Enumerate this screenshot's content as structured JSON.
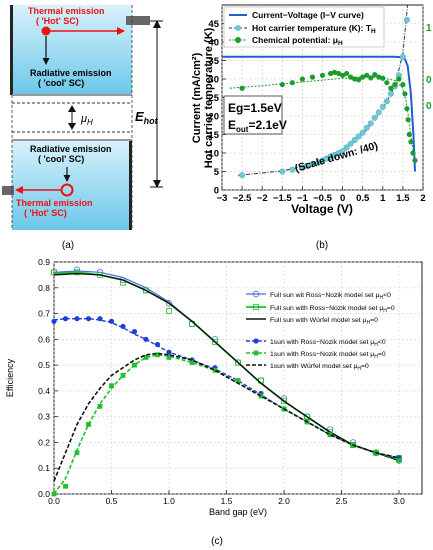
{
  "panel_labels": {
    "a": "(a)",
    "b": "(b)",
    "c": "(c)"
  },
  "diagram_a": {
    "top_thermal": "Thermal emission",
    "top_hot": "( 'Hot' SC)",
    "top_radiative": "Radiative emission",
    "top_cool": "( 'cool' SC)",
    "mu_label": "μ",
    "mu_sub": "H",
    "ehot_label": "E",
    "ehot_sub": "hot",
    "bottom_radiative": "Radiative emission",
    "bottom_cool": "( 'cool' SC)",
    "bottom_thermal": "Thermal emission",
    "bottom_hot": "( 'Hot' SC)"
  },
  "chart_data": [
    {
      "id": "b",
      "type": "line",
      "xlabel": "Voltage (V)",
      "ylabel_line1": "Current (mA/cm²)",
      "ylabel_line2": "Hot carrier temperature (K)",
      "xlim": [
        -3,
        2
      ],
      "ylim": [
        0,
        50
      ],
      "xticks": [
        "−3",
        "−2.5",
        "−2",
        "−1.5",
        "−1",
        "−0.5",
        "0",
        "0.5",
        "1",
        "1.5",
        "2"
      ],
      "yticks": [
        "0",
        "5",
        "10",
        "15",
        "20",
        "25",
        "30",
        "35",
        "40",
        "45"
      ],
      "right_ticks": [
        "1",
        "0",
        "0"
      ],
      "grid": true,
      "legend_position": "top-right",
      "legend": [
        "Current−Voltage (I−V curve)",
        "Hot carrier temperature (K): T",
        "Chemical potential: μ"
      ],
      "legend_subs": [
        "",
        "H",
        "H"
      ],
      "annotations": {
        "eg": "Eg=1.5eV",
        "eout": "E",
        "eout_sub": "out",
        "eout_val": "=2.1eV",
        "scale": "(Scale down: /40)"
      },
      "colors": {
        "iv": "#1f5fd6",
        "temp": "#6fc8d8",
        "mu": "#1a9c2a",
        "fit": "#333333"
      },
      "series": [
        {
          "name": "Current−Voltage (I−V curve)",
          "x": [
            -3,
            -2,
            -1,
            0,
            1,
            1.3,
            1.45,
            1.55,
            1.62,
            1.7,
            1.76,
            1.8
          ],
          "y": [
            36,
            36,
            36,
            36,
            36,
            36,
            35.9,
            35.4,
            33.5,
            26,
            15,
            5
          ]
        },
        {
          "name": "Hot carrier temperature (K): T",
          "x": [
            -2.5,
            -1.5,
            -1.25,
            -1.0,
            -0.9,
            -0.75,
            -0.6,
            -0.5,
            -0.4,
            -0.3,
            -0.2,
            -0.1,
            0.0,
            0.1,
            0.2,
            0.3,
            0.4,
            0.5,
            0.6,
            0.7,
            0.8,
            0.9,
            1.0,
            1.1,
            1.2,
            1.3,
            1.4,
            1.5,
            1.6
          ],
          "y": [
            4,
            5,
            5.5,
            6,
            6.5,
            7,
            7.5,
            8,
            8.5,
            9,
            9.5,
            10,
            10.5,
            11.5,
            12.5,
            13.5,
            14.5,
            15.5,
            16.8,
            18,
            19.5,
            21,
            22.5,
            24,
            26,
            28,
            31,
            36,
            46
          ]
        },
        {
          "name": "Hot carrier fit",
          "x": [
            -2.6,
            -2,
            -1.5,
            -1,
            -0.5,
            0,
            0.5,
            1.0,
            1.3,
            1.5,
            1.6,
            1.65,
            1.7
          ],
          "y": [
            4,
            4.6,
            5.2,
            6.3,
            8,
            10.5,
            15,
            22,
            28,
            37,
            48,
            55,
            60
          ]
        },
        {
          "name": "Chemical potential: μ",
          "x": [
            -2.5,
            -1.5,
            -1.25,
            -1.0,
            -0.75,
            -0.5,
            -0.3,
            -0.2,
            -0.1,
            0.0,
            0.1,
            0.2,
            0.3,
            0.4,
            0.5,
            0.6,
            0.7,
            0.8,
            0.9,
            1.0,
            1.1,
            1.2,
            1.3,
            1.4,
            1.5,
            1.55,
            1.6,
            1.63,
            1.66,
            1.7,
            1.75,
            1.8
          ],
          "y": [
            27.5,
            28.5,
            29,
            30,
            30.5,
            31,
            31.5,
            31.8,
            31.5,
            31,
            31.5,
            30.5,
            30,
            29.8,
            30.5,
            31,
            30.3,
            31.2,
            30.5,
            30.2,
            29,
            27.5,
            28.5,
            30,
            28.5,
            26,
            22,
            19,
            15,
            13,
            10,
            8
          ]
        },
        {
          "name": "Chemical potential fit",
          "x": [
            -2.8,
            -2,
            -1,
            0,
            0.5,
            1.0,
            1.3,
            1.5,
            1.58,
            1.65,
            1.72,
            1.8
          ],
          "y": [
            27.5,
            28.2,
            29.2,
            30.2,
            30.6,
            30.3,
            29.6,
            27.5,
            24,
            19,
            13,
            8
          ]
        }
      ]
    },
    {
      "id": "c",
      "type": "line",
      "title": "",
      "xlabel": "Band gap (eV)",
      "ylabel": "Efficiency",
      "xlim": [
        0,
        3.2
      ],
      "ylim": [
        0,
        0.9
      ],
      "xticks": [
        "0.0",
        "0.5",
        "1.0",
        "1.5",
        "2.0",
        "2.5",
        "3.0"
      ],
      "yticks": [
        "0.0",
        "0.1",
        "0.2",
        "0.3",
        "0.4",
        "0.5",
        "0.6",
        "0.7",
        "0.8",
        "0.9"
      ],
      "grid": true,
      "legend_position": "top-right",
      "legend": [
        "Full sun wit Ross−Nozik model set μ<0",
        "Full sun with Ross−Nozik model set μ=0",
        "Full sun with Würfel model set μ=0",
        "1sun with Ross−Nozik model set μ<0",
        "1sun with Ross−Nozik model set μ=0",
        "1sun with Würfel model set μ=0"
      ],
      "legend_subs": [
        "H",
        "H",
        "H",
        "H",
        "H",
        "H"
      ],
      "colors": {
        "s1": "#4c6fe0",
        "s2": "#1fbf2e",
        "s3": "#111111",
        "s4": "#1d3fd6",
        "s5": "#1fbf2e",
        "s6": "#111111"
      },
      "series": [
        {
          "name": "Full sun wit Ross−Nozik model set μ<0",
          "x": [
            0.0,
            0.2,
            0.4,
            0.6,
            0.8,
            1.0,
            1.2,
            1.4,
            1.6,
            1.8,
            2.0,
            2.2,
            2.4,
            2.6,
            2.8,
            3.0
          ],
          "y": [
            0.86,
            0.87,
            0.86,
            0.83,
            0.79,
            0.74,
            0.66,
            0.6,
            0.51,
            0.44,
            0.37,
            0.3,
            0.25,
            0.2,
            0.16,
            0.13
          ]
        },
        {
          "name": "Full sun with Ross−Nozik model set μ=0",
          "x": [
            0.0,
            0.2,
            0.4,
            0.6,
            0.8,
            1.0,
            1.2,
            1.4,
            1.6,
            1.8,
            2.0,
            2.2,
            2.4,
            2.6,
            2.8,
            3.0
          ],
          "y": [
            0.86,
            0.86,
            0.85,
            0.82,
            0.79,
            0.71,
            0.66,
            0.59,
            0.51,
            0.44,
            0.36,
            0.3,
            0.24,
            0.19,
            0.16,
            0.14
          ]
        },
        {
          "name": "Full sun with Würfel model set μ=0",
          "x": [
            0.0,
            0.2,
            0.4,
            0.6,
            0.8,
            1.0,
            1.2,
            1.4,
            1.6,
            1.8,
            2.0,
            2.2,
            2.4,
            2.6,
            2.8,
            3.0
          ],
          "y": [
            0.85,
            0.855,
            0.85,
            0.83,
            0.79,
            0.74,
            0.67,
            0.59,
            0.51,
            0.43,
            0.36,
            0.3,
            0.24,
            0.19,
            0.16,
            0.13
          ]
        },
        {
          "name": "1sun with Ross−Nozik model set μ<0",
          "x": [
            0.0,
            0.1,
            0.2,
            0.3,
            0.4,
            0.5,
            0.6,
            0.7,
            0.8,
            0.9,
            1.0,
            1.2,
            1.4,
            1.6,
            1.8,
            2.0,
            2.2,
            2.4,
            2.6,
            2.8,
            3.0
          ],
          "y": [
            0.67,
            0.68,
            0.68,
            0.68,
            0.68,
            0.67,
            0.65,
            0.63,
            0.6,
            0.58,
            0.55,
            0.52,
            0.49,
            0.44,
            0.39,
            0.33,
            0.28,
            0.23,
            0.19,
            0.16,
            0.14
          ]
        },
        {
          "name": "1sun with Ross−Nozik model set μ=0",
          "x": [
            0.0,
            0.1,
            0.2,
            0.3,
            0.4,
            0.5,
            0.6,
            0.7,
            0.8,
            0.9,
            1.0,
            1.2,
            1.4,
            1.6,
            1.8,
            2.0,
            2.2,
            2.4,
            2.6,
            2.8,
            3.0
          ],
          "y": [
            0.0,
            0.03,
            0.16,
            0.27,
            0.34,
            0.42,
            0.46,
            0.5,
            0.53,
            0.54,
            0.53,
            0.51,
            0.48,
            0.44,
            0.38,
            0.33,
            0.28,
            0.23,
            0.19,
            0.16,
            0.13
          ]
        },
        {
          "name": "1sun with Würfel model set μ=0",
          "x": [
            0.0,
            0.1,
            0.2,
            0.3,
            0.4,
            0.5,
            0.6,
            0.7,
            0.8,
            0.9,
            1.0,
            1.2,
            1.4,
            1.6,
            1.8,
            2.0,
            2.2,
            2.4,
            2.6,
            2.8,
            3.0
          ],
          "y": [
            0.05,
            0.16,
            0.27,
            0.35,
            0.41,
            0.46,
            0.49,
            0.52,
            0.54,
            0.545,
            0.54,
            0.52,
            0.48,
            0.43,
            0.38,
            0.33,
            0.28,
            0.23,
            0.19,
            0.16,
            0.14
          ]
        }
      ]
    }
  ]
}
